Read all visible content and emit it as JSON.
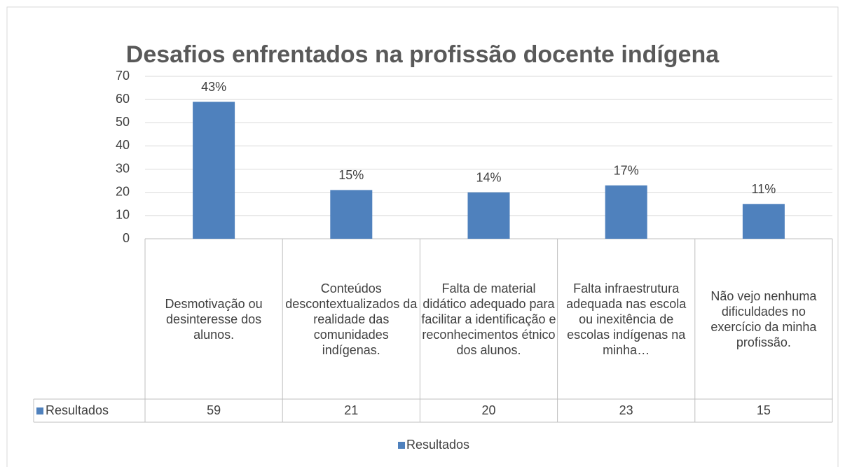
{
  "chart_data": {
    "type": "bar",
    "title": "Desafios enfrentados na profissão docente indígena",
    "categories": [
      "Desmotivação ou desinteresse dos alunos.",
      "Conteúdos descontextualizados da realidade das comunidades indígenas.",
      "Falta de material didático adequado para facilitar a identificação e reconhecimentos étnico dos alunos.",
      "Falta infraestrutura adequada nas escola ou inexitência de escolas indígenas na minha…",
      "Não vejo nenhuma dificuldades no exercício da minha profissão."
    ],
    "series": [
      {
        "name": "Resultados",
        "color": "#4f81bd",
        "values": [
          59,
          21,
          20,
          23,
          15
        ],
        "value_labels": [
          "43%",
          "15%",
          "14%",
          "17%",
          "11%"
        ]
      }
    ],
    "ylim": [
      0,
      70
    ],
    "yticks": [
      0,
      10,
      20,
      30,
      40,
      50,
      60,
      70
    ],
    "grid": true,
    "legend": "bottom"
  }
}
